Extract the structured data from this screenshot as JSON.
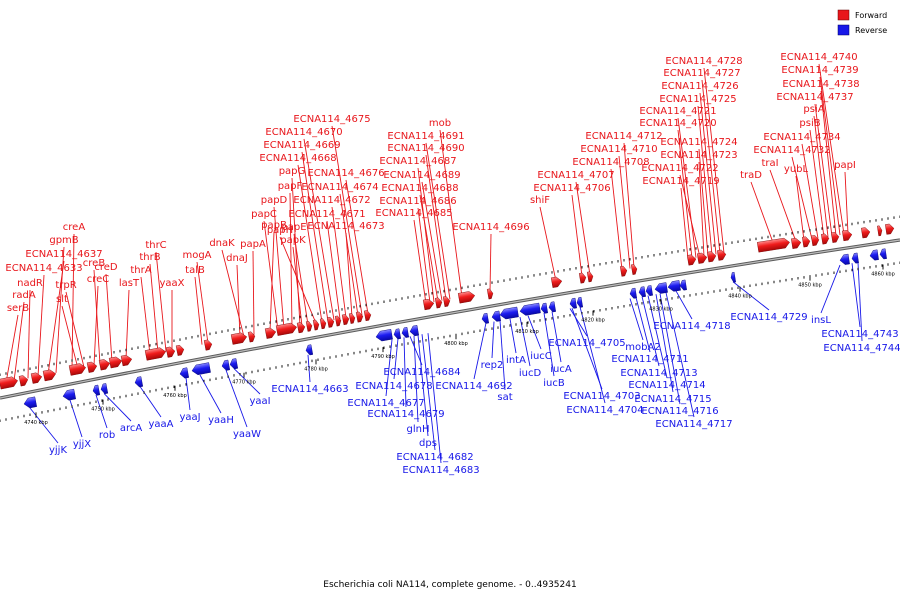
{
  "legend": [
    {
      "label": "Forward",
      "color": "#e8161b"
    },
    {
      "label": "Reverse",
      "color": "#1717e8"
    }
  ],
  "caption": "Escherichia coli NA114, complete genome. - 0..4935241",
  "colors": {
    "forward": "#e8161b",
    "reverse": "#1717e8",
    "backbone": "#7f7f7f"
  },
  "ticks": [
    "4740 kbp",
    "4750 kbp",
    "4760 kbp",
    "4770 kbp",
    "4780 kbp",
    "4790 kbp",
    "4800 kbp",
    "4810 kbp",
    "4820 kbp",
    "4830 kbp",
    "4840 kbp",
    "4850 kbp",
    "4860 kbp"
  ],
  "forward_labels": [
    "serB",
    "radA",
    "nadR",
    "ECNA114_4633",
    "ECNA114_4637",
    "gpmB",
    "creA",
    "slt",
    "trpR",
    "creB",
    "creC",
    "creD",
    "lasT",
    "thrA",
    "thrB",
    "thrC",
    "yaaX",
    "talB",
    "mogA",
    "dnaJ",
    "dnaK",
    "papA",
    "papB",
    "papC",
    "papD",
    "papF",
    "papG",
    "papK",
    "papE",
    "papH",
    "ECNA114_4668",
    "ECNA114_4669",
    "ECNA114_4670",
    "ECNA114_4671",
    "ECNA114_4672",
    "ECNA114_4673",
    "ECNA114_4674",
    "ECNA114_4675",
    "ECNA114_4676",
    "ECNA114_4685",
    "ECNA114_4686",
    "ECNA114_4687",
    "ECNA114_4688",
    "ECNA114_4689",
    "ECNA114_4690",
    "ECNA114_4691",
    "mob",
    "ECNA114_4696",
    "shiF",
    "ECNA114_4706",
    "ECNA114_4707",
    "ECNA114_4708",
    "ECNA114_4710",
    "ECNA114_4712",
    "ECNA114_4719",
    "ECNA114_4720",
    "ECNA114_4721",
    "ECNA114_4722",
    "ECNA114_4723",
    "ECNA114_4724",
    "ECNA114_4725",
    "ECNA114_4726",
    "ECNA114_4727",
    "ECNA114_4728",
    "traD",
    "traI",
    "yubL",
    "ECNA114_4732",
    "ECNA114_4734",
    "psiB",
    "psiA",
    "ECNA114_4737",
    "ECNA114_4738",
    "ECNA114_4739",
    "ECNA114_4740",
    "papI"
  ],
  "reverse_labels": [
    "yjjK",
    "yjjX",
    "rob",
    "arcA",
    "yaaA",
    "yaaJ",
    "yaaH",
    "yaaW",
    "yaaI",
    "ECNA114_4663",
    "ECNA114_4677",
    "ECNA114_4678",
    "ECNA114_4679",
    "ECNA114_4684",
    "glnH",
    "dps",
    "ECNA114_4682",
    "ECNA114_4683",
    "ECNA114_4692",
    "rep2",
    "sat",
    "intA",
    "iucD",
    "iucC",
    "iucB",
    "iucA",
    "ECNA114_4703",
    "ECNA114_4704",
    "ECNA114_4705",
    "mobA2",
    "ECNA114_4711",
    "ECNA114_4713",
    "ECNA114_4714",
    "ECNA114_4715",
    "ECNA114_4716",
    "ECNA114_4717",
    "ECNA114_4718",
    "ECNA114_4729",
    "insL",
    "ECNA114_4743",
    "ECNA114_4744"
  ]
}
